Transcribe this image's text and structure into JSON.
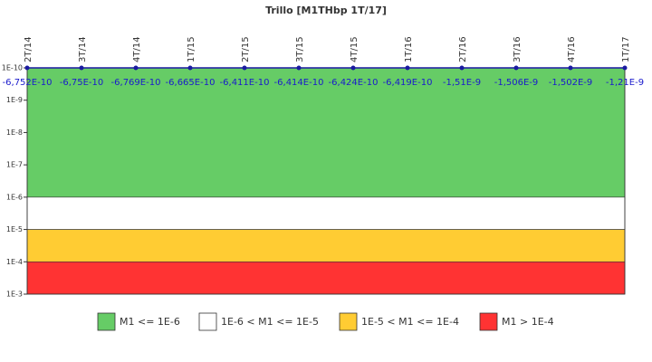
{
  "chart_data": {
    "type": "line",
    "title": "Trillo [M1THbp 1T/17]",
    "categories": [
      "2T/14",
      "3T/14",
      "4T/14",
      "1T/15",
      "2T/15",
      "3T/15",
      "4T/15",
      "1T/16",
      "2T/16",
      "3T/16",
      "4T/16",
      "1T/17"
    ],
    "values": [
      -6.752e-10,
      -6.75e-10,
      -6.769e-10,
      -6.665e-10,
      -6.411e-10,
      -6.414e-10,
      -6.424e-10,
      -6.419e-10,
      -1.51e-09,
      -1.506e-09,
      -1.502e-09,
      -1.21e-09
    ],
    "value_labels": [
      "-6,752E-10",
      "-6,75E-10",
      "-6,769E-10",
      "-6,665E-10",
      "-6,411E-10",
      "-6,414E-10",
      "-6,424E-10",
      "-6,419E-10",
      "-1,51E-9",
      "-1,506E-9",
      "-1,502E-9",
      "-1,21E-9"
    ],
    "color": "#1a1aa0",
    "log_y": true,
    "y_inverted": true,
    "ylim": [
      1e-10,
      0.001
    ],
    "yticks": [
      {
        "value": 1e-10,
        "label": "1E-10"
      },
      {
        "value": 1e-09,
        "label": "1E-9"
      },
      {
        "value": 1e-08,
        "label": "1E-8"
      },
      {
        "value": 1e-07,
        "label": "1E-7"
      },
      {
        "value": 1e-06,
        "label": "1E-6"
      },
      {
        "value": 1e-05,
        "label": "1E-5"
      },
      {
        "value": 0.0001,
        "label": "1E-4"
      },
      {
        "value": 0.001,
        "label": "1E-3"
      }
    ],
    "bands": [
      {
        "name": "M1 <= 1E-6",
        "color": "#66cc66",
        "range": [
          1e-10,
          1e-06
        ]
      },
      {
        "name": "1E-6 < M1 <= 1E-5",
        "color": "#ffffff",
        "range": [
          1e-06,
          1e-05
        ]
      },
      {
        "name": "1E-5 < M1 <= 1E-4",
        "color": "#ffcc33",
        "range": [
          1e-05,
          0.0001
        ]
      },
      {
        "name": "M1 > 1E-4",
        "color": "#ff3333",
        "range": [
          0.0001,
          0.001
        ]
      }
    ]
  }
}
